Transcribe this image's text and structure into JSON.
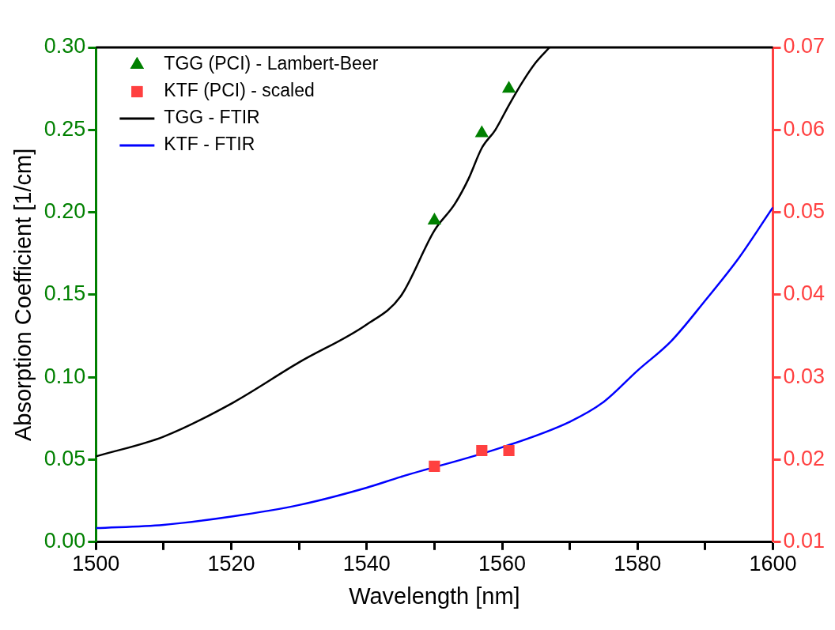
{
  "chart_data": {
    "type": "line",
    "xlabel": "Wavelength [nm]",
    "ylabel": "Absorption Coefficient [1/cm]",
    "xlim": [
      1500,
      1600
    ],
    "xticks": [
      1500,
      {
        "value": 1510,
        "label": null
      },
      1520,
      {
        "value": 1530,
        "label": null
      },
      1540,
      {
        "value": 1550,
        "label": null
      },
      1560,
      {
        "value": 1570,
        "label": null
      },
      1580,
      {
        "value": 1590,
        "label": null
      },
      1600
    ],
    "ylim": [
      0,
      0.3
    ],
    "yticks": [
      {
        "value": 0,
        "label": "0.00"
      },
      {
        "value": 0.05,
        "label": "0.05"
      },
      {
        "value": 0.1,
        "label": "0.10"
      },
      {
        "value": 0.15,
        "label": "0.15"
      },
      {
        "value": 0.2,
        "label": "0.20"
      },
      {
        "value": 0.25,
        "label": "0.25"
      },
      {
        "value": 0.3,
        "label": "0.30"
      }
    ],
    "y2lim": [
      0.01,
      0.07
    ],
    "y2ticks": [
      {
        "value": 0.01,
        "label": "0.01"
      },
      {
        "value": 0.02,
        "label": "0.02"
      },
      {
        "value": 0.03,
        "label": "0.03"
      },
      {
        "value": 0.04,
        "label": "0.04"
      },
      {
        "value": 0.05,
        "label": "0.05"
      },
      {
        "value": 0.06,
        "label": "0.06"
      },
      {
        "value": 0.07,
        "label": "0.07"
      }
    ],
    "legend": "top left",
    "grid": false,
    "series": [
      {
        "name": "TGG (PCI) - Lambert-Beer",
        "type": "scatter",
        "marker": "triangle",
        "color": "#008000",
        "x": [
          1550,
          1557,
          1561
        ],
        "values": [
          0.195,
          0.248,
          0.275
        ]
      },
      {
        "name": "KTF (PCI) - scaled",
        "type": "scatter",
        "marker": "square",
        "color": "#ff4040",
        "axis": "y2",
        "x": [
          1550,
          1557,
          1561
        ],
        "values": [
          0.0192,
          0.0211,
          0.0211
        ]
      },
      {
        "name": "TGG - FTIR",
        "type": "line",
        "color": "#000000",
        "x": [
          1500,
          1510,
          1520,
          1530,
          1540,
          1545,
          1550,
          1553,
          1555,
          1557,
          1559,
          1561,
          1563,
          1565,
          1567
        ],
        "values": [
          0.052,
          0.064,
          0.084,
          0.109,
          0.132,
          0.149,
          0.189,
          0.205,
          0.22,
          0.239,
          0.25,
          0.265,
          0.279,
          0.291,
          0.3
        ]
      },
      {
        "name": "KTF - FTIR",
        "type": "line",
        "color": "#0000ff",
        "axis": "y2",
        "x": [
          1500,
          1510,
          1520,
          1530,
          1540,
          1545,
          1560,
          1570,
          1575,
          1580,
          1585,
          1590,
          1595,
          1600
        ],
        "values": [
          0.0117,
          0.0121,
          0.0131,
          0.0145,
          0.0166,
          0.0179,
          0.0215,
          0.0246,
          0.027,
          0.0308,
          0.0344,
          0.0393,
          0.0445,
          0.0506
        ]
      }
    ]
  }
}
